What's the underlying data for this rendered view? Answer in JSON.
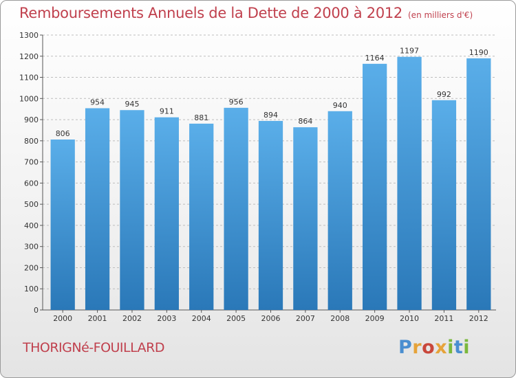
{
  "header": {
    "title": "Remboursements Annuels de la Dette de 2000 à 2012",
    "subtitle": "(en milliers d'€)"
  },
  "footer": {
    "commune": "THORIGNé-FOUILLARD",
    "brand": "Proxiti",
    "brand_letters": [
      {
        "ch": "P",
        "color": "#4a8ed0"
      },
      {
        "ch": "r",
        "color": "#e6a33a"
      },
      {
        "ch": "o",
        "color": "#c9473b"
      },
      {
        "ch": "x",
        "color": "#e6a33a"
      },
      {
        "ch": "i",
        "color": "#7bb83c"
      },
      {
        "ch": "t",
        "color": "#4a8ed0"
      },
      {
        "ch": "i",
        "color": "#7bb83c"
      }
    ]
  },
  "colors": {
    "title": "#c0404d",
    "bar_top": "#5aaee9",
    "bar_bottom": "#2a78b8",
    "grid": "#bdbdbd",
    "text": "#333333"
  },
  "chart_data": {
    "type": "bar",
    "categories": [
      "2000",
      "2001",
      "2002",
      "2003",
      "2004",
      "2005",
      "2006",
      "2007",
      "2008",
      "2009",
      "2010",
      "2011",
      "2012"
    ],
    "values": [
      806,
      954,
      945,
      911,
      881,
      956,
      894,
      864,
      940,
      1164,
      1197,
      992,
      1190
    ],
    "ylim": [
      0,
      1300
    ],
    "yticks": [
      0,
      100,
      200,
      300,
      400,
      500,
      600,
      700,
      800,
      900,
      1000,
      1100,
      1200,
      1300
    ],
    "grid": true,
    "data_labels": true
  }
}
